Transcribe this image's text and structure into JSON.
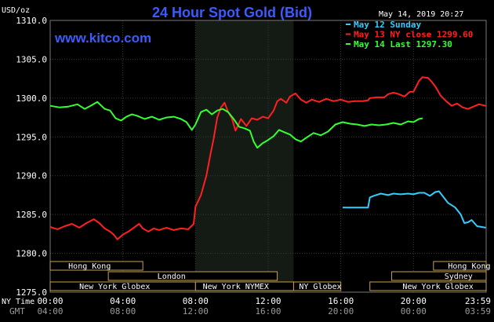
{
  "header": {
    "title": "24 Hour Spot Gold (Bid)",
    "site": "www.kitco.com",
    "unit": "USD/oz",
    "datetime": "May 14, 2019 20:27"
  },
  "chart_data": {
    "type": "line",
    "title": "24 Hour Spot Gold (Bid)",
    "ylabel": "USD/oz",
    "ylim": [
      1275,
      1310
    ],
    "yticks": [
      "1310.0",
      "1305.0",
      "1300.0",
      "1295.0",
      "1290.0",
      "1285.0",
      "1280.0",
      "1275.0"
    ],
    "xlim": [
      0,
      24
    ],
    "x_row_label": "NY Time",
    "gmt_row_label": "GMT",
    "xticks": [
      {
        "h": 0,
        "ny": "00:00",
        "gmt": "04:00"
      },
      {
        "h": 4,
        "ny": "04:00",
        "gmt": "08:00"
      },
      {
        "h": 8,
        "ny": "08:00",
        "gmt": "12:00"
      },
      {
        "h": 12,
        "ny": "12:00",
        "gmt": "16:00"
      },
      {
        "h": 16,
        "ny": "16:00",
        "gmt": "20:00"
      },
      {
        "h": 20,
        "ny": "20:00",
        "gmt": "00:00"
      },
      {
        "h": 23.98,
        "ny": "23:59",
        "gmt": "03:59"
      }
    ],
    "grid": true,
    "legend_position": "top-right",
    "highlight_range": [
      8.0,
      13.4
    ],
    "series": [
      {
        "name": "May 12 Sunday",
        "color": "#33ccff",
        "points": [
          [
            16.1,
            1285.9
          ],
          [
            17.5,
            1285.9
          ],
          [
            17.6,
            1287.2
          ],
          [
            17.8,
            1287.4
          ],
          [
            18.2,
            1287.7
          ],
          [
            18.6,
            1287.5
          ],
          [
            18.9,
            1287.7
          ],
          [
            19.3,
            1287.6
          ],
          [
            19.7,
            1287.7
          ],
          [
            20.0,
            1287.6
          ],
          [
            20.3,
            1287.8
          ],
          [
            20.6,
            1287.8
          ],
          [
            20.9,
            1287.4
          ],
          [
            21.2,
            1287.9
          ],
          [
            21.4,
            1288.0
          ],
          [
            21.6,
            1287.4
          ],
          [
            21.9,
            1286.5
          ],
          [
            22.3,
            1285.9
          ],
          [
            22.6,
            1285.0
          ],
          [
            22.8,
            1283.9
          ],
          [
            23.0,
            1284.0
          ],
          [
            23.2,
            1284.3
          ],
          [
            23.5,
            1283.5
          ],
          [
            23.98,
            1283.3
          ]
        ]
      },
      {
        "name": "May 13 NY close",
        "value_label": "1299.60",
        "color": "#ff2020",
        "points": [
          [
            0,
            1283.4
          ],
          [
            0.4,
            1283.1
          ],
          [
            0.8,
            1283.5
          ],
          [
            1.2,
            1283.8
          ],
          [
            1.6,
            1283.3
          ],
          [
            2.0,
            1283.9
          ],
          [
            2.4,
            1284.4
          ],
          [
            2.7,
            1283.9
          ],
          [
            3.0,
            1283.2
          ],
          [
            3.3,
            1282.8
          ],
          [
            3.5,
            1282.4
          ],
          [
            3.7,
            1281.8
          ],
          [
            4.0,
            1282.4
          ],
          [
            4.3,
            1282.8
          ],
          [
            4.6,
            1283.3
          ],
          [
            4.9,
            1283.8
          ],
          [
            5.1,
            1283.2
          ],
          [
            5.4,
            1282.8
          ],
          [
            5.7,
            1283.2
          ],
          [
            6.0,
            1283.0
          ],
          [
            6.4,
            1283.3
          ],
          [
            6.8,
            1283.0
          ],
          [
            7.2,
            1283.2
          ],
          [
            7.6,
            1283.1
          ],
          [
            7.9,
            1283.8
          ],
          [
            8.0,
            1286.0
          ],
          [
            8.3,
            1287.5
          ],
          [
            8.6,
            1290.0
          ],
          [
            8.8,
            1292.5
          ],
          [
            9.0,
            1294.8
          ],
          [
            9.2,
            1297.5
          ],
          [
            9.4,
            1298.8
          ],
          [
            9.6,
            1299.4
          ],
          [
            9.8,
            1298.2
          ],
          [
            10.0,
            1297.4
          ],
          [
            10.2,
            1295.8
          ],
          [
            10.5,
            1297.3
          ],
          [
            10.8,
            1296.4
          ],
          [
            11.1,
            1297.4
          ],
          [
            11.4,
            1297.2
          ],
          [
            11.7,
            1297.6
          ],
          [
            12.0,
            1297.4
          ],
          [
            12.3,
            1298.4
          ],
          [
            12.5,
            1299.6
          ],
          [
            12.7,
            1299.9
          ],
          [
            13.0,
            1299.4
          ],
          [
            13.2,
            1300.2
          ],
          [
            13.5,
            1300.6
          ],
          [
            13.8,
            1299.8
          ],
          [
            14.1,
            1299.4
          ],
          [
            14.4,
            1299.8
          ],
          [
            14.8,
            1299.5
          ],
          [
            15.2,
            1299.9
          ],
          [
            15.6,
            1299.6
          ],
          [
            16.0,
            1299.8
          ],
          [
            16.4,
            1299.5
          ],
          [
            16.8,
            1299.6
          ],
          [
            17.2,
            1299.6
          ],
          [
            17.5,
            1299.7
          ],
          [
            17.6,
            1300.0
          ],
          [
            18.0,
            1300.1
          ],
          [
            18.4,
            1300.1
          ],
          [
            18.6,
            1300.5
          ],
          [
            18.9,
            1300.7
          ],
          [
            19.2,
            1300.5
          ],
          [
            19.5,
            1300.2
          ],
          [
            19.8,
            1300.8
          ],
          [
            20.0,
            1300.8
          ],
          [
            20.3,
            1302.2
          ],
          [
            20.5,
            1302.7
          ],
          [
            20.8,
            1302.6
          ],
          [
            21.0,
            1302.1
          ],
          [
            21.2,
            1301.5
          ],
          [
            21.5,
            1300.3
          ],
          [
            21.8,
            1299.6
          ],
          [
            22.1,
            1299.0
          ],
          [
            22.4,
            1299.3
          ],
          [
            22.7,
            1298.8
          ],
          [
            23.0,
            1298.6
          ],
          [
            23.3,
            1298.9
          ],
          [
            23.6,
            1299.2
          ],
          [
            23.98,
            1299.0
          ]
        ]
      },
      {
        "name": "May 14 Last",
        "value_label": "1297.30",
        "color": "#33ff33",
        "points": [
          [
            0,
            1299.0
          ],
          [
            0.5,
            1298.8
          ],
          [
            1.0,
            1298.9
          ],
          [
            1.5,
            1299.2
          ],
          [
            1.9,
            1298.6
          ],
          [
            2.3,
            1299.1
          ],
          [
            2.6,
            1299.5
          ],
          [
            3.0,
            1298.6
          ],
          [
            3.3,
            1298.4
          ],
          [
            3.6,
            1297.4
          ],
          [
            3.9,
            1297.1
          ],
          [
            4.2,
            1297.6
          ],
          [
            4.5,
            1297.9
          ],
          [
            4.8,
            1297.7
          ],
          [
            5.2,
            1297.3
          ],
          [
            5.6,
            1297.6
          ],
          [
            6.0,
            1297.2
          ],
          [
            6.4,
            1297.5
          ],
          [
            6.8,
            1297.6
          ],
          [
            7.2,
            1297.3
          ],
          [
            7.5,
            1296.9
          ],
          [
            7.8,
            1295.9
          ],
          [
            8.0,
            1296.6
          ],
          [
            8.3,
            1298.2
          ],
          [
            8.6,
            1298.5
          ],
          [
            8.9,
            1297.9
          ],
          [
            9.2,
            1298.4
          ],
          [
            9.5,
            1298.6
          ],
          [
            9.8,
            1298.2
          ],
          [
            10.1,
            1297.3
          ],
          [
            10.4,
            1296.3
          ],
          [
            10.7,
            1296.1
          ],
          [
            11.0,
            1295.8
          ],
          [
            11.2,
            1294.4
          ],
          [
            11.4,
            1293.6
          ],
          [
            11.7,
            1294.2
          ],
          [
            12.0,
            1294.6
          ],
          [
            12.3,
            1295.1
          ],
          [
            12.6,
            1295.9
          ],
          [
            12.9,
            1295.6
          ],
          [
            13.2,
            1295.3
          ],
          [
            13.5,
            1294.7
          ],
          [
            13.8,
            1294.4
          ],
          [
            14.1,
            1294.9
          ],
          [
            14.5,
            1295.5
          ],
          [
            14.9,
            1295.2
          ],
          [
            15.3,
            1295.7
          ],
          [
            15.7,
            1296.6
          ],
          [
            16.1,
            1296.9
          ],
          [
            16.5,
            1296.7
          ],
          [
            16.9,
            1296.6
          ],
          [
            17.3,
            1296.4
          ],
          [
            17.7,
            1296.6
          ],
          [
            18.1,
            1296.5
          ],
          [
            18.5,
            1296.6
          ],
          [
            18.9,
            1296.8
          ],
          [
            19.3,
            1296.6
          ],
          [
            19.7,
            1297.0
          ],
          [
            20.0,
            1296.9
          ],
          [
            20.3,
            1297.3
          ],
          [
            20.5,
            1297.4
          ]
        ]
      }
    ]
  },
  "markets": [
    {
      "name": "Hong Kong",
      "row": 0,
      "start": 0.0,
      "end": 5.1,
      "labelAt": 1.0
    },
    {
      "name": "London",
      "row": 1,
      "start": 3.2,
      "end": 12.5,
      "labelAt": 5.9
    },
    {
      "name": "New York Globex",
      "row": 2,
      "start": 0.0,
      "end": 8.0,
      "labelAt": 1.6
    },
    {
      "name": "New York NYMEX",
      "row": 2,
      "start": 8.0,
      "end": 13.4,
      "labelAt": 8.4
    },
    {
      "name": "NY Globex",
      "row": 2,
      "start": 13.4,
      "end": 16.0,
      "labelAt": 13.7
    },
    {
      "name": "Hong Kong",
      "row": 0,
      "start": 21.1,
      "end": 24.0,
      "labelAt": 21.9
    },
    {
      "name": "Sydney",
      "row": 1,
      "start": 18.8,
      "end": 24.0,
      "labelAt": 21.7
    },
    {
      "name": "New York Globex",
      "row": 2,
      "start": 17.6,
      "end": 24.0,
      "labelAt": 19.4
    }
  ]
}
